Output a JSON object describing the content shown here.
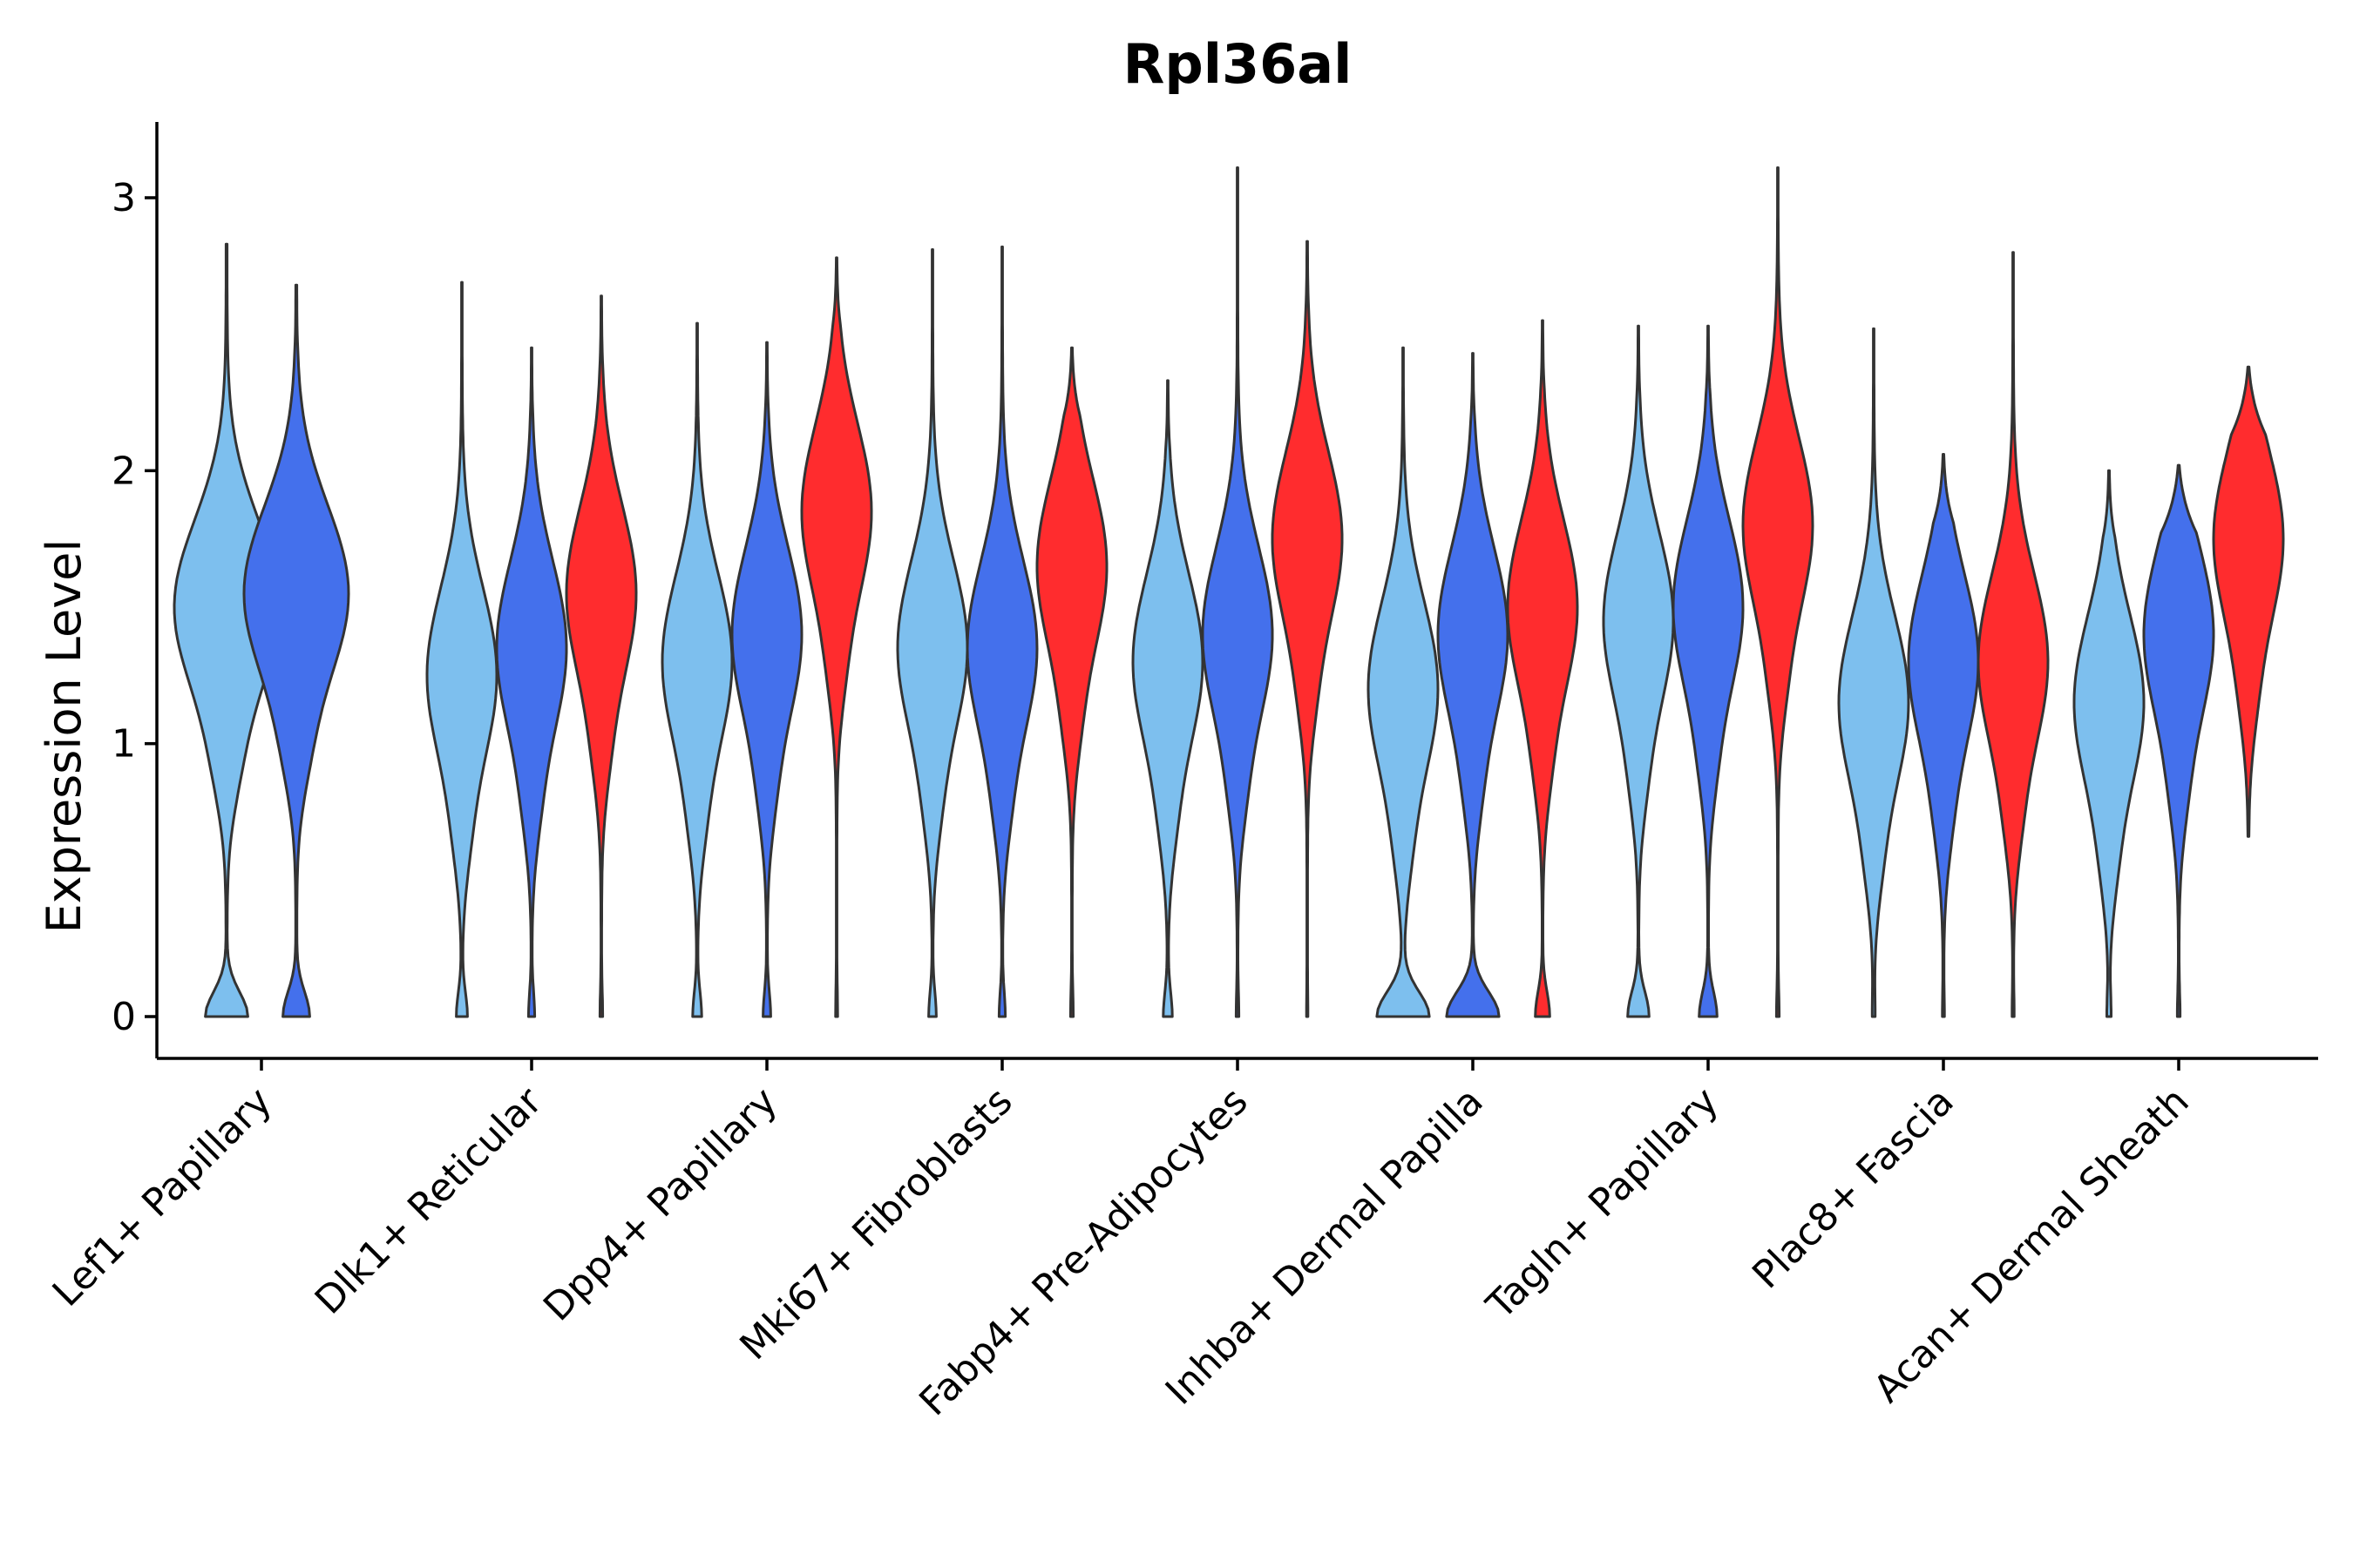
{
  "chart_data": {
    "type": "violin",
    "title": "Rpl36al",
    "xlabel": "",
    "ylabel": "Expression Level",
    "ylim": [
      -0.15,
      3.25
    ],
    "yticks": [
      0,
      1,
      2,
      3
    ],
    "categories": [
      "Lef1+ Papillary",
      "Dlk1+ Reticular",
      "Dpp4+ Papillary",
      "Mki67+ Fibroblasts",
      "Fabp4+ Pre-Adipocytes",
      "Inhba+ Dermal Papilla",
      "Tagln+ Papillary",
      "Plac8+ Fascia",
      "Acan+ Dermal Sheath"
    ],
    "groups": [
      {
        "name": "group 1",
        "color": "#7DBFEE"
      },
      {
        "name": "group 2",
        "color": "#4470EC"
      },
      {
        "name": "group 3",
        "color": "#FF2C2E"
      }
    ],
    "series": [
      {
        "category": "Lef1+ Papillary",
        "violins": [
          {
            "group": 0,
            "max": 2.83,
            "mode": 1.5,
            "width": 0.9,
            "zero": 0.4
          },
          {
            "group": 1,
            "max": 2.68,
            "mode": 1.55,
            "width": 0.9,
            "zero": 0.25
          }
        ]
      },
      {
        "category": "Dlk1+ Reticular",
        "violins": [
          {
            "group": 0,
            "max": 2.69,
            "mode": 1.25,
            "width": 0.6,
            "zero": 0.15
          },
          {
            "group": 1,
            "max": 2.45,
            "mode": 1.35,
            "width": 0.6,
            "zero": 0.08
          },
          {
            "group": 2,
            "max": 2.64,
            "mode": 1.55,
            "width": 0.6,
            "zero": 0.03
          }
        ]
      },
      {
        "category": "Dpp4+ Papillary",
        "violins": [
          {
            "group": 0,
            "max": 2.54,
            "mode": 1.3,
            "width": 0.6,
            "zero": 0.12
          },
          {
            "group": 1,
            "max": 2.47,
            "mode": 1.4,
            "width": 0.6,
            "zero": 0.1
          },
          {
            "group": 2,
            "max": 2.78,
            "mode": 1.85,
            "width": 0.6,
            "zero": 0.02
          }
        ]
      },
      {
        "category": "Mki67+ Fibroblasts",
        "violins": [
          {
            "group": 0,
            "max": 2.81,
            "mode": 1.35,
            "width": 0.6,
            "zero": 0.1
          },
          {
            "group": 1,
            "max": 2.82,
            "mode": 1.35,
            "width": 0.6,
            "zero": 0.08
          },
          {
            "group": 2,
            "max": 2.45,
            "mode": 1.65,
            "width": 0.6,
            "zero": 0.03
          }
        ]
      },
      {
        "category": "Fabp4+ Pre-Adipocytes",
        "violins": [
          {
            "group": 0,
            "max": 2.33,
            "mode": 1.3,
            "width": 0.6,
            "zero": 0.12
          },
          {
            "group": 1,
            "max": 3.11,
            "mode": 1.4,
            "width": 0.6,
            "zero": 0.03
          },
          {
            "group": 2,
            "max": 2.84,
            "mode": 1.75,
            "width": 0.6,
            "zero": 0.01
          }
        ]
      },
      {
        "category": "Inhba+ Dermal Papilla",
        "violins": [
          {
            "group": 0,
            "max": 2.45,
            "mode": 1.2,
            "width": 0.6,
            "zero": 0.75
          },
          {
            "group": 1,
            "max": 2.43,
            "mode": 1.4,
            "width": 0.6,
            "zero": 0.75
          },
          {
            "group": 2,
            "max": 2.55,
            "mode": 1.5,
            "width": 0.6,
            "zero": 0.2
          }
        ]
      },
      {
        "category": "Tagln+ Papillary",
        "violins": [
          {
            "group": 0,
            "max": 2.53,
            "mode": 1.45,
            "width": 0.6,
            "zero": 0.3
          },
          {
            "group": 1,
            "max": 2.53,
            "mode": 1.5,
            "width": 0.6,
            "zero": 0.25
          },
          {
            "group": 2,
            "max": 3.11,
            "mode": 1.8,
            "width": 0.6,
            "zero": 0.03
          }
        ]
      },
      {
        "category": "Plac8+ Fascia",
        "violins": [
          {
            "group": 0,
            "max": 2.52,
            "mode": 1.15,
            "width": 0.6,
            "zero": 0.03
          },
          {
            "group": 1,
            "max": 2.06,
            "mode": 1.3,
            "width": 0.6,
            "zero": 0.02
          },
          {
            "group": 2,
            "max": 2.8,
            "mode": 1.3,
            "width": 0.6,
            "zero": 0.02
          }
        ]
      },
      {
        "category": "Acan+ Dermal Sheath",
        "violins": [
          {
            "group": 0,
            "max": 2.0,
            "mode": 1.15,
            "width": 0.6,
            "zero": 0.05
          },
          {
            "group": 1,
            "max": 2.02,
            "mode": 1.4,
            "width": 0.6,
            "zero": 0.03
          },
          {
            "group": 2,
            "max": 2.38,
            "mode": 1.75,
            "width": 0.6,
            "zero": 0.0,
            "min": 0.66
          }
        ]
      }
    ]
  }
}
